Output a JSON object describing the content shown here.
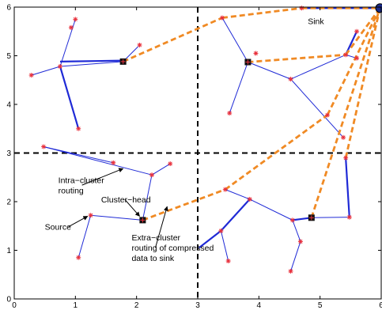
{
  "chart_data": {
    "type": "scatter",
    "title": "",
    "xlabel": "",
    "ylabel": "",
    "xlim": [
      0,
      6
    ],
    "ylim": [
      0,
      6
    ],
    "grid": false,
    "xticks": [
      "0",
      "1",
      "2",
      "3",
      "4",
      "5",
      "6"
    ],
    "yticks": [
      "0",
      "1",
      "2",
      "3",
      "4",
      "5",
      "6"
    ],
    "colors": {
      "intra_link": "#1f2ad6",
      "extra_link": "#f08a24",
      "node": "#e8303c",
      "divider": "#000000"
    },
    "sink": [
      5.98,
      5.98
    ],
    "cluster_heads": [
      [
        1.78,
        4.88
      ],
      [
        3.82,
        4.87
      ],
      [
        2.1,
        1.62
      ],
      [
        4.86,
        1.67
      ]
    ],
    "sensors": [
      [
        1.0,
        5.75
      ],
      [
        0.93,
        5.58
      ],
      [
        0.28,
        4.6
      ],
      [
        0.75,
        4.78
      ],
      [
        2.05,
        5.22
      ],
      [
        1.05,
        3.5
      ],
      [
        3.4,
        5.78
      ],
      [
        4.7,
        5.98
      ],
      [
        5.6,
        5.5
      ],
      [
        5.42,
        5.02
      ],
      [
        5.6,
        4.95
      ],
      [
        3.95,
        5.05
      ],
      [
        4.52,
        4.52
      ],
      [
        5.12,
        3.78
      ],
      [
        3.52,
        3.82
      ],
      [
        5.38,
        3.32
      ],
      [
        0.48,
        3.13
      ],
      [
        1.62,
        2.8
      ],
      [
        2.25,
        2.55
      ],
      [
        2.55,
        2.78
      ],
      [
        1.25,
        1.72
      ],
      [
        1.05,
        0.85
      ],
      [
        3.45,
        2.25
      ],
      [
        3.85,
        2.05
      ],
      [
        3.38,
        1.4
      ],
      [
        3.5,
        0.78
      ],
      [
        4.55,
        1.62
      ],
      [
        4.68,
        1.18
      ],
      [
        4.52,
        0.57
      ],
      [
        5.48,
        1.68
      ],
      [
        5.42,
        2.9
      ]
    ],
    "intra_links": [
      [
        [
          0.75,
          4.78
        ],
        [
          1.0,
          5.75
        ]
      ],
      [
        [
          0.75,
          4.78
        ],
        [
          0.28,
          4.6
        ]
      ],
      [
        [
          0.75,
          4.78
        ],
        [
          1.05,
          3.5
        ]
      ],
      [
        [
          0.75,
          4.78
        ],
        [
          1.78,
          4.88
        ]
      ],
      [
        [
          1.78,
          4.88
        ],
        [
          2.05,
          5.22
        ]
      ],
      [
        [
          3.82,
          4.87
        ],
        [
          3.4,
          5.78
        ]
      ],
      [
        [
          3.82,
          4.87
        ],
        [
          3.52,
          3.82
        ]
      ],
      [
        [
          3.82,
          4.87
        ],
        [
          4.52,
          4.52
        ]
      ],
      [
        [
          4.52,
          4.52
        ],
        [
          5.38,
          3.32
        ]
      ],
      [
        [
          4.52,
          4.52
        ],
        [
          5.42,
          5.02
        ]
      ],
      [
        [
          5.42,
          5.02
        ],
        [
          5.6,
          4.95
        ]
      ],
      [
        [
          5.42,
          5.02
        ],
        [
          5.6,
          5.5
        ]
      ],
      [
        [
          4.7,
          5.98
        ],
        [
          5.98,
          5.98
        ]
      ],
      [
        [
          4.7,
          5.98
        ],
        [
          5.98,
          5.98
        ]
      ],
      [
        [
          0.48,
          3.13
        ],
        [
          1.62,
          2.8
        ]
      ],
      [
        [
          0.48,
          3.13
        ],
        [
          2.25,
          2.55
        ]
      ],
      [
        [
          2.25,
          2.55
        ],
        [
          2.55,
          2.78
        ]
      ],
      [
        [
          2.25,
          2.55
        ],
        [
          2.1,
          1.62
        ]
      ],
      [
        [
          2.1,
          1.62
        ],
        [
          1.25,
          1.72
        ]
      ],
      [
        [
          1.25,
          1.72
        ],
        [
          1.05,
          0.85
        ]
      ],
      [
        [
          3.85,
          2.05
        ],
        [
          3.45,
          2.25
        ]
      ],
      [
        [
          3.85,
          2.05
        ],
        [
          3.38,
          1.4
        ]
      ],
      [
        [
          3.85,
          2.05
        ],
        [
          4.55,
          1.62
        ]
      ],
      [
        [
          3.38,
          1.4
        ],
        [
          3.5,
          0.78
        ]
      ],
      [
        [
          4.55,
          1.62
        ],
        [
          4.68,
          1.18
        ]
      ],
      [
        [
          4.68,
          1.18
        ],
        [
          4.52,
          0.57
        ]
      ],
      [
        [
          4.55,
          1.62
        ],
        [
          4.86,
          1.67
        ]
      ],
      [
        [
          4.86,
          1.67
        ],
        [
          5.48,
          1.68
        ]
      ],
      [
        [
          5.48,
          1.68
        ],
        [
          5.42,
          2.9
        ]
      ]
    ],
    "thick_links": [
      [
        [
          0.75,
          4.88
        ],
        [
          1.78,
          4.9
        ]
      ],
      [
        [
          0.75,
          4.78
        ],
        [
          1.05,
          3.5
        ]
      ],
      [
        [
          4.7,
          5.98
        ],
        [
          5.98,
          5.98
        ]
      ],
      [
        [
          5.42,
          5.02
        ],
        [
          5.6,
          5.5
        ]
      ],
      [
        [
          3.02,
          1.05
        ],
        [
          3.38,
          1.4
        ]
      ],
      [
        [
          3.38,
          1.4
        ],
        [
          3.85,
          2.05
        ]
      ],
      [
        [
          5.48,
          1.68
        ],
        [
          5.42,
          2.9
        ]
      ],
      [
        [
          4.55,
          1.62
        ],
        [
          4.86,
          1.67
        ]
      ]
    ],
    "extra_links": [
      [
        [
          1.78,
          4.88
        ],
        [
          3.4,
          5.78
        ]
      ],
      [
        [
          3.4,
          5.78
        ],
        [
          4.7,
          5.98
        ]
      ],
      [
        [
          4.7,
          5.98
        ],
        [
          5.98,
          5.98
        ]
      ],
      [
        [
          3.82,
          4.87
        ],
        [
          5.42,
          5.02
        ]
      ],
      [
        [
          5.42,
          5.02
        ],
        [
          5.98,
          5.98
        ]
      ],
      [
        [
          2.1,
          1.62
        ],
        [
          3.45,
          2.25
        ]
      ],
      [
        [
          3.45,
          2.25
        ],
        [
          5.12,
          3.78
        ]
      ],
      [
        [
          5.12,
          3.78
        ],
        [
          5.98,
          5.98
        ]
      ],
      [
        [
          4.86,
          1.67
        ],
        [
          5.98,
          5.98
        ]
      ],
      [
        [
          5.42,
          2.9
        ],
        [
          5.98,
          5.98
        ]
      ]
    ],
    "dividers": {
      "x": 3,
      "y": 3
    },
    "annotations": [
      {
        "lines": [
          "Sink"
        ],
        "text_at": [
          4.8,
          5.65
        ],
        "arrow_to": null
      },
      {
        "lines": [
          "Intra−cluster",
          "routing"
        ],
        "text_at": [
          0.72,
          2.38
        ],
        "arrow_to": [
          1.78,
          2.68
        ]
      },
      {
        "lines": [
          "Cluster−head"
        ],
        "text_at": [
          1.42,
          1.98
        ],
        "arrow_to": [
          2.05,
          1.7
        ]
      },
      {
        "lines": [
          "Source"
        ],
        "text_at": [
          0.5,
          1.42
        ],
        "arrow_to": [
          1.2,
          1.7
        ]
      },
      {
        "lines": [
          "Extra−cluster",
          "routing of compressed",
          "data to sink"
        ],
        "text_at": [
          1.92,
          1.2
        ],
        "arrow_to": [
          2.5,
          1.9
        ]
      }
    ]
  }
}
